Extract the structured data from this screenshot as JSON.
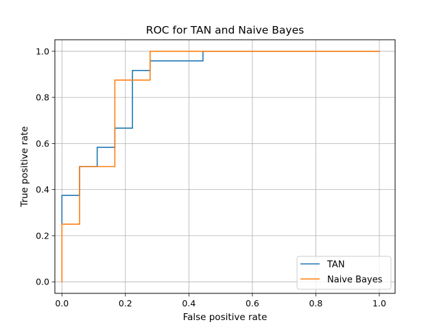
{
  "chart_data": {
    "type": "line",
    "title": "ROC for TAN and Naive Bayes",
    "xlabel": "False positive rate",
    "ylabel": "True positive rate",
    "xlim": [
      -0.0222,
      1.0497
    ],
    "ylim": [
      -0.05,
      1.05
    ],
    "xticks": [
      0.0,
      0.2,
      0.4,
      0.6,
      0.8,
      1.0
    ],
    "yticks": [
      0.0,
      0.2,
      0.4,
      0.6,
      0.8,
      1.0
    ],
    "xtick_labels": [
      "0.0",
      "0.2",
      "0.4",
      "0.6",
      "0.8",
      "1.0"
    ],
    "ytick_labels": [
      "0.0",
      "0.2",
      "0.4",
      "0.6",
      "0.8",
      "1.0"
    ],
    "grid": true,
    "legend_position": "lower-right",
    "series": [
      {
        "name": "TAN",
        "color": "#1f77b4",
        "x": [
          0.0,
          0.0,
          0.0556,
          0.0556,
          0.1111,
          0.1111,
          0.1667,
          0.1667,
          0.2222,
          0.2222,
          0.2778,
          0.2778,
          0.4444,
          0.4444,
          1.0
        ],
        "y": [
          0.25,
          0.375,
          0.375,
          0.5,
          0.5,
          0.5833,
          0.5833,
          0.6667,
          0.6667,
          0.9167,
          0.9167,
          0.9583,
          0.9583,
          1.0,
          1.0
        ]
      },
      {
        "name": "Naive Bayes",
        "color": "#ff7f0e",
        "x": [
          0.0,
          0.0,
          0.0556,
          0.0556,
          0.1667,
          0.1667,
          0.2778,
          0.2778,
          1.0
        ],
        "y": [
          0.0,
          0.25,
          0.25,
          0.5,
          0.5,
          0.875,
          0.875,
          1.0,
          1.0
        ]
      }
    ]
  }
}
